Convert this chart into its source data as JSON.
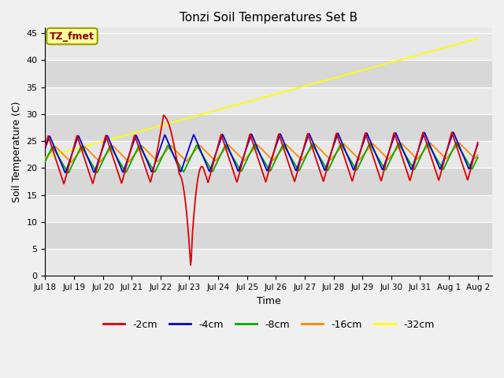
{
  "title": "Tonzi Soil Temperatures Set B",
  "xlabel": "Time",
  "ylabel": "Soil Temperature (C)",
  "ylim": [
    0,
    46
  ],
  "xlim_days": [
    0,
    15.5
  ],
  "fig_bg": "#f0f0f0",
  "plot_bg": "#e8e8e8",
  "band_colors": [
    "#e8e8e8",
    "#d8d8d8"
  ],
  "annotation_text": "TZ_fmet",
  "annotation_color": "#8b0000",
  "annotation_bg": "#ffff99",
  "legend_labels": [
    "-2cm",
    "-4cm",
    "-8cm",
    "-16cm",
    "-32cm"
  ],
  "legend_colors": [
    "#dd0000",
    "#0000cc",
    "#00aa00",
    "#ff8800",
    "#ffff00"
  ],
  "series_colors": {
    "-2cm": "#dd0000",
    "-4cm": "#0000cc",
    "-8cm": "#00aa00",
    "-16cm": "#ff8800",
    "-32cm": "#ffff00"
  },
  "tick_labels": [
    "Jul 18",
    "Jul 19",
    "Jul 20",
    "Jul 21",
    "Jul 22",
    "Jul 23",
    "Jul 24",
    "Jul 25",
    "Jul 26",
    "Jul 27",
    "Jul 28",
    "Jul 29",
    "Jul 30",
    "Jul 31",
    "Aug 1",
    "Aug 2"
  ],
  "tick_positions": [
    0,
    1,
    2,
    3,
    4,
    5,
    6,
    7,
    8,
    9,
    10,
    11,
    12,
    13,
    14,
    15
  ],
  "yticks": [
    0,
    5,
    10,
    15,
    20,
    25,
    30,
    35,
    40,
    45
  ]
}
